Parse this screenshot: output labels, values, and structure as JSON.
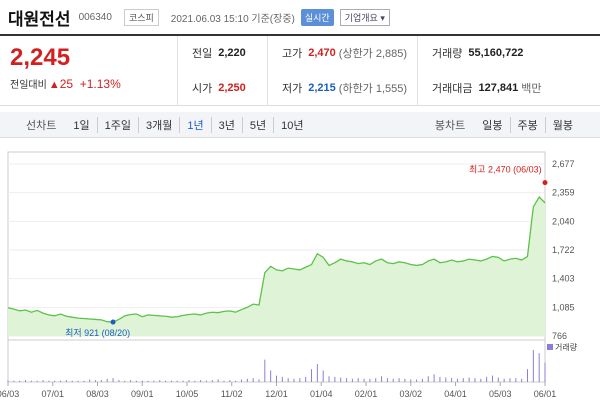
{
  "header": {
    "name": "대원전선",
    "code": "006340",
    "market": "코스피",
    "datetime": "2021.06.03 15:10 기준(장중)",
    "realtime": "실시간",
    "company_info": "기업개요"
  },
  "quote": {
    "price": "2,245",
    "change_label": "전일대비",
    "change_arrow": "▲",
    "change_value": "25",
    "change_pct": "+1.13%",
    "prev_close": {
      "label": "전일",
      "value": "2,220"
    },
    "high": {
      "label": "고가",
      "value": "2,470",
      "sub": "(상한가 2,885)"
    },
    "volume": {
      "label": "거래량",
      "value": "55,160,722"
    },
    "open": {
      "label": "시가",
      "value": "2,250"
    },
    "low": {
      "label": "저가",
      "value": "2,215",
      "sub": "(하한가 1,555)"
    },
    "amount": {
      "label": "거래대금",
      "value": "127,841",
      "unit": "백만"
    }
  },
  "tabs": {
    "line_label": "선차트",
    "line_items": [
      "1일",
      "1주일",
      "3개월",
      "1년",
      "3년",
      "5년",
      "10년"
    ],
    "candle_label": "봉차트",
    "candle_items": [
      "일봉",
      "주봉",
      "월봉"
    ]
  },
  "colors": {
    "line": "#5cc24a",
    "fill": "#dff4d6",
    "up": "#d21f1f",
    "down": "#1b5fc1",
    "volume": "#8a7fd8"
  },
  "chart_data": {
    "type": "area",
    "y_ticks": [
      "2,677",
      "2,359",
      "2,040",
      "1,722",
      "1,403",
      "1,085",
      "766"
    ],
    "ylim": [
      766,
      2677
    ],
    "x_labels": [
      "06/03",
      "07/01",
      "08/03",
      "09/01",
      "10/05",
      "11/02",
      "12/01",
      "01/04",
      "02/01",
      "03/02",
      "04/01",
      "05/03",
      "06/01"
    ],
    "series": [
      {
        "values": [
          1080,
          1065,
          1045,
          1055,
          1030,
          1050,
          1020,
          1000,
          990,
          1010,
          985,
          975,
          965,
          960,
          955,
          950,
          945,
          925,
          921,
          950,
          990,
          1005,
          1010,
          980,
          1000,
          995,
          990,
          985,
          975,
          980,
          995,
          1005,
          1010,
          1000,
          1020,
          1030,
          1025,
          1040,
          1045,
          1030,
          1060,
          1085,
          1120,
          1110,
          1470,
          1540,
          1500,
          1490,
          1520,
          1510,
          1500,
          1530,
          1560,
          1680,
          1640,
          1550,
          1580,
          1620,
          1600,
          1590,
          1570,
          1580,
          1560,
          1600,
          1620,
          1580,
          1570,
          1590,
          1580,
          1560,
          1550,
          1560,
          1600,
          1620,
          1580,
          1590,
          1610,
          1590,
          1600,
          1620,
          1610,
          1600,
          1620,
          1650,
          1640,
          1600,
          1620,
          1630,
          1610,
          1650,
          2200,
          2310,
          2245
        ]
      }
    ],
    "annotations": [
      {
        "text": "최고 2,470 (06/03)",
        "value": 2470,
        "color": "#d21f1f"
      },
      {
        "text": "최저 921 (08/20)",
        "value": 921,
        "color": "#1b5fc1"
      }
    ],
    "volume_label": "거래량",
    "volume": [
      3,
      2,
      2,
      3,
      2,
      2,
      3,
      2,
      2,
      2,
      3,
      2,
      2,
      2,
      4,
      3,
      3,
      5,
      6,
      3,
      2,
      3,
      2,
      2,
      2,
      2,
      3,
      2,
      2,
      2,
      2,
      3,
      2,
      3,
      2,
      3,
      4,
      2,
      3,
      2,
      4,
      5,
      6,
      4,
      35,
      18,
      10,
      8,
      6,
      5,
      6,
      8,
      20,
      28,
      18,
      9,
      8,
      7,
      6,
      5,
      6,
      5,
      5,
      6,
      9,
      6,
      5,
      6,
      5,
      4,
      4,
      5,
      9,
      12,
      8,
      7,
      6,
      5,
      6,
      7,
      6,
      5,
      8,
      10,
      7,
      5,
      6,
      6,
      5,
      20,
      50,
      45,
      30
    ]
  }
}
